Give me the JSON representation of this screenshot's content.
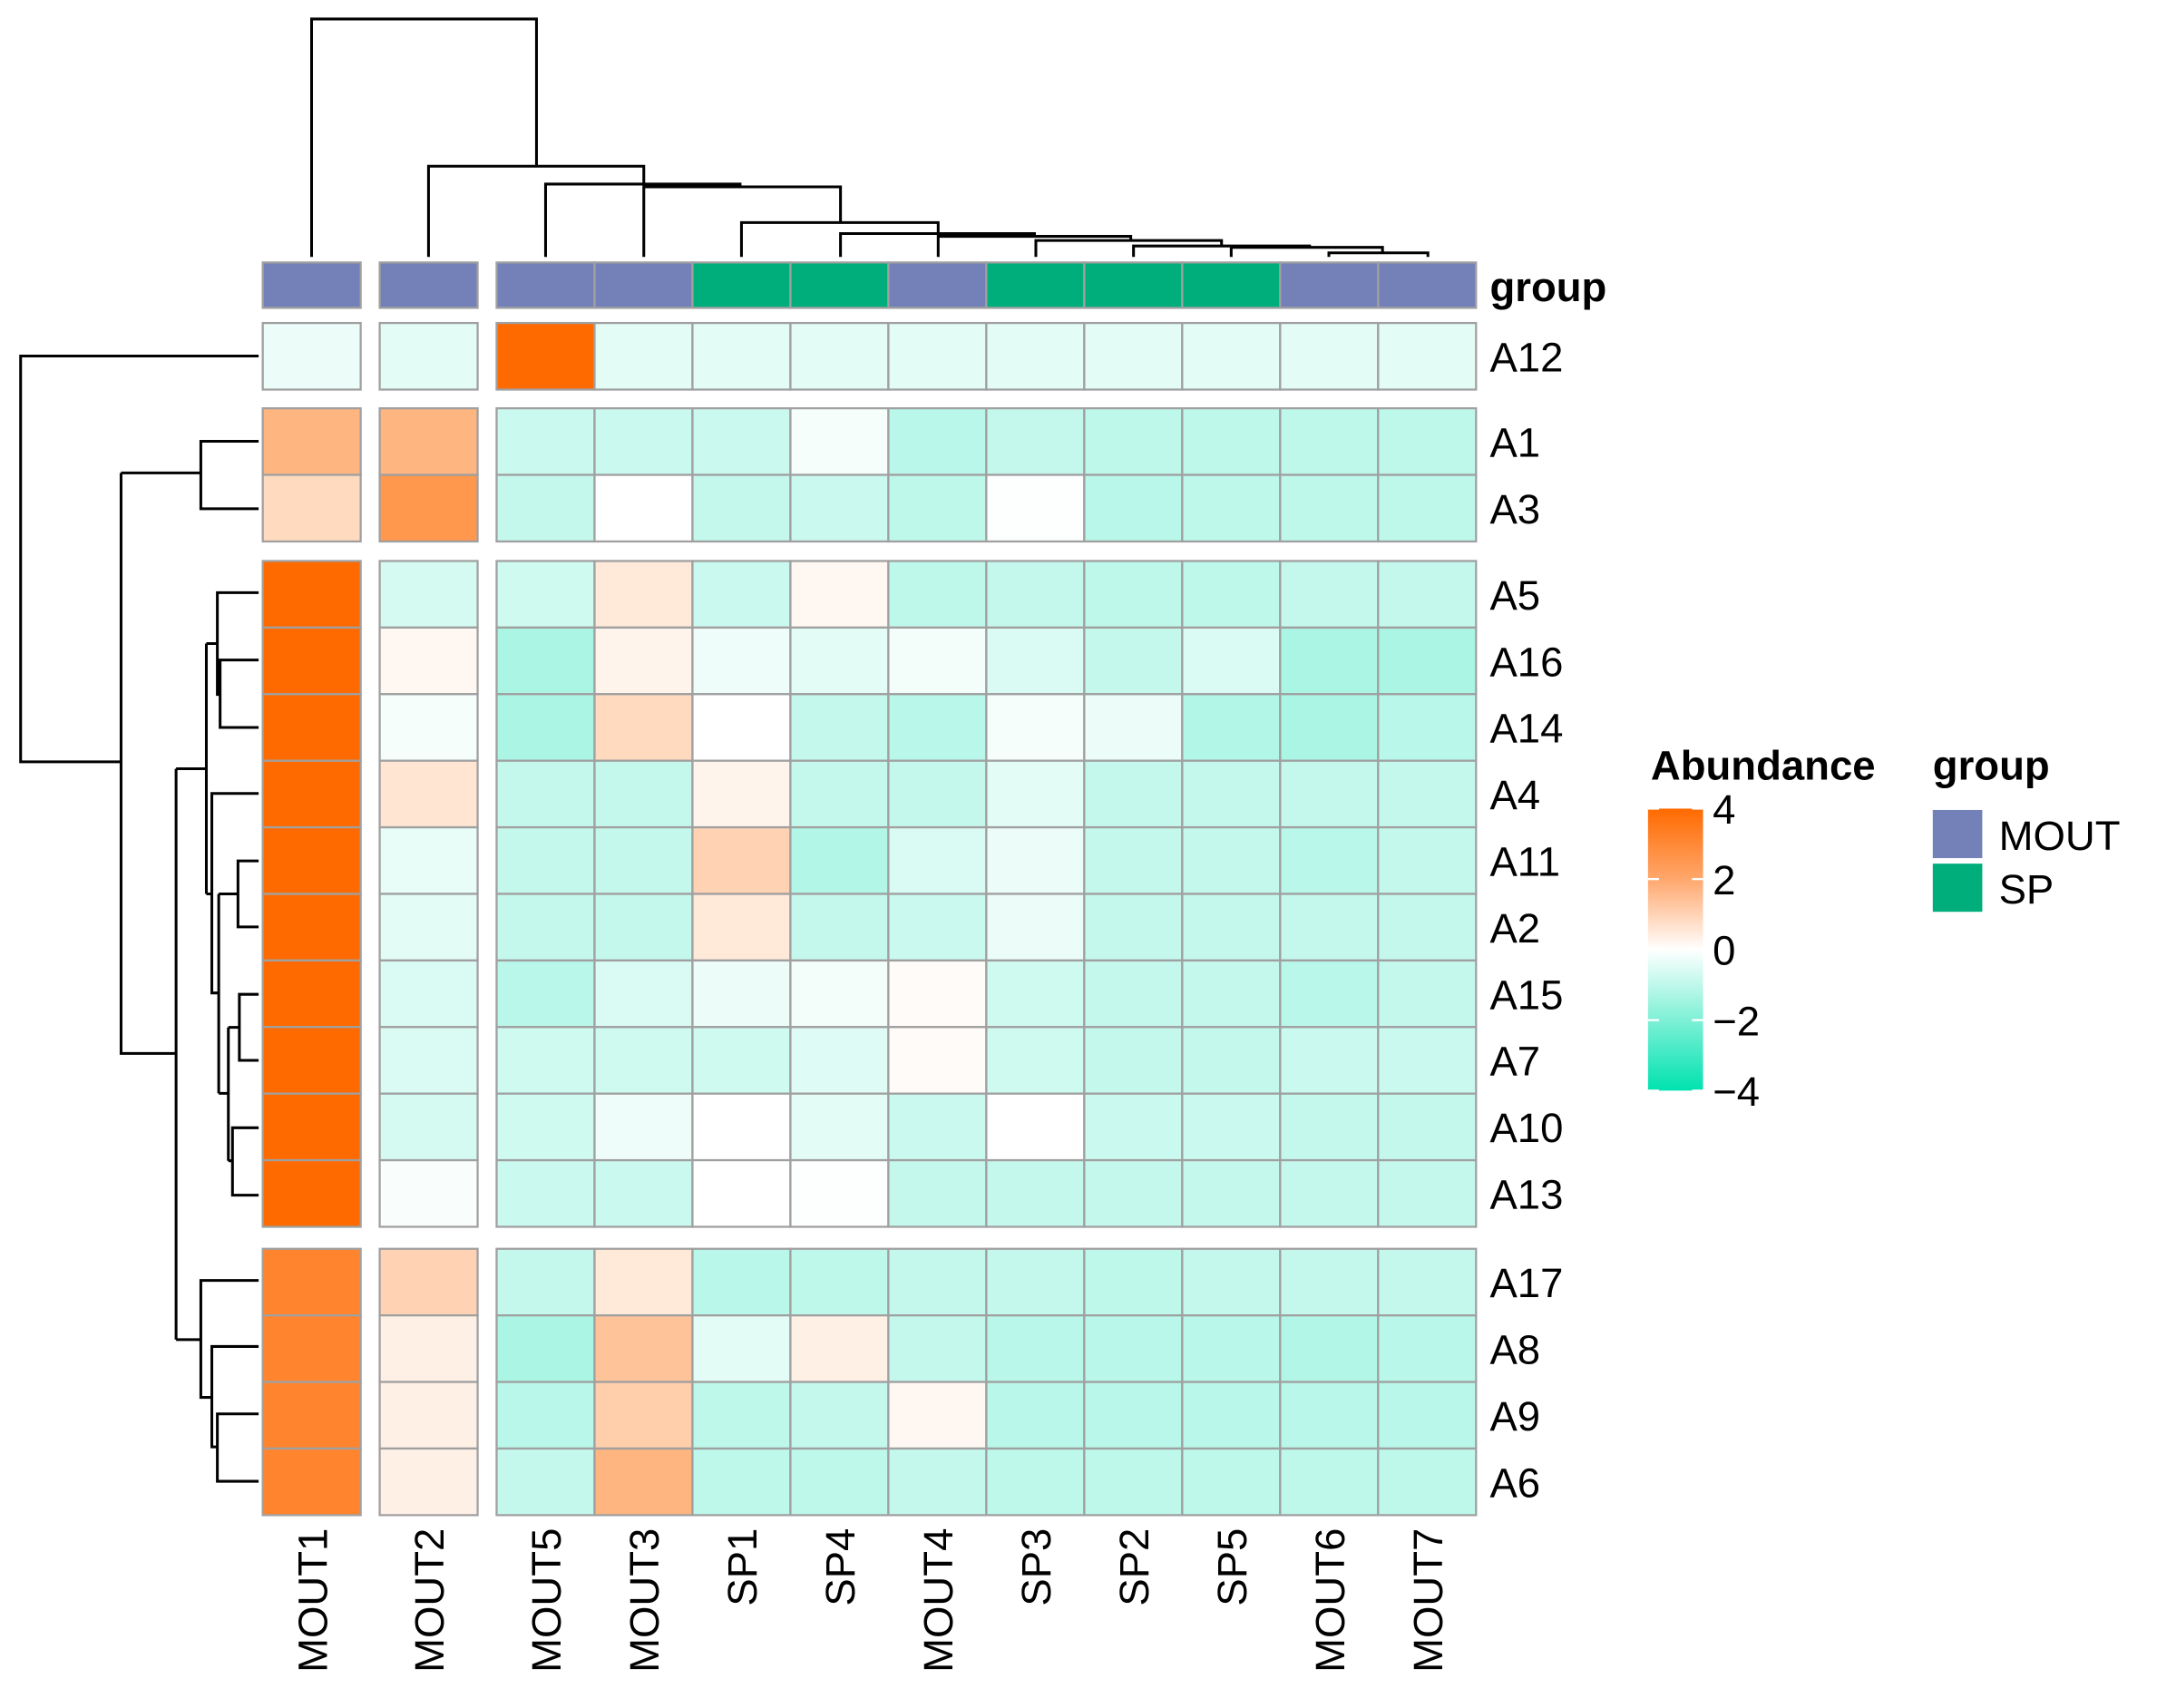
{
  "chart_data": {
    "type": "heatmap",
    "title": "",
    "columns": [
      "MOUT1",
      "MOUT2",
      "MOUT5",
      "MOUT3",
      "SP1",
      "SP4",
      "MOUT4",
      "SP3",
      "SP2",
      "SP5",
      "MOUT6",
      "MOUT7"
    ],
    "column_groups": [
      "MOUT",
      "MOUT",
      "MOUT",
      "MOUT",
      "SP",
      "SP",
      "MOUT",
      "SP",
      "SP",
      "SP",
      "MOUT",
      "MOUT"
    ],
    "column_splits": [
      [
        0
      ],
      [
        1
      ],
      [
        2,
        3,
        4,
        5,
        6,
        7,
        8,
        9,
        10,
        11
      ]
    ],
    "rows": [
      "A12",
      "A1",
      "A3",
      "A5",
      "A16",
      "A14",
      "A4",
      "A11",
      "A2",
      "A15",
      "A7",
      "A10",
      "A13",
      "A17",
      "A8",
      "A9",
      "A6"
    ],
    "row_splits": [
      [
        0
      ],
      [
        1,
        2
      ],
      [
        3,
        4,
        5,
        6,
        7,
        8,
        9,
        10,
        11,
        12
      ],
      [
        13,
        14,
        15,
        16
      ]
    ],
    "values": [
      [
        -0.8,
        -1.0,
        4.0,
        -1.0,
        -1.0,
        -1.0,
        -1.0,
        -1.0,
        -1.0,
        -1.0,
        -1.0,
        -1.0
      ],
      [
        2.0,
        2.0,
        -1.5,
        -1.5,
        -1.5,
        -0.5,
        -1.8,
        -1.6,
        -1.7,
        -1.7,
        -1.7,
        -1.7
      ],
      [
        1.0,
        2.8,
        -1.6,
        0.0,
        -1.6,
        -1.5,
        -1.7,
        -0.2,
        -1.8,
        -1.7,
        -1.7,
        -1.7
      ],
      [
        4.0,
        -1.3,
        -1.4,
        0.6,
        -1.5,
        0.2,
        -1.7,
        -1.6,
        -1.7,
        -1.7,
        -1.6,
        -1.6
      ],
      [
        4.0,
        0.2,
        -2.0,
        0.3,
        -0.7,
        -1.0,
        -0.6,
        -1.2,
        -1.6,
        -1.2,
        -2.0,
        -2.0
      ],
      [
        4.0,
        -0.5,
        -2.0,
        1.0,
        0.0,
        -1.6,
        -1.8,
        -0.5,
        -0.8,
        -1.9,
        -2.0,
        -1.8
      ],
      [
        4.0,
        0.7,
        -1.6,
        -1.6,
        0.3,
        -1.6,
        -1.6,
        -1.0,
        -1.6,
        -1.6,
        -1.6,
        -1.6
      ],
      [
        4.0,
        -0.9,
        -1.6,
        -1.6,
        1.2,
        -1.9,
        -1.2,
        -0.8,
        -1.6,
        -1.6,
        -1.8,
        -1.6
      ],
      [
        4.0,
        -1.0,
        -1.6,
        -1.6,
        0.6,
        -1.6,
        -1.5,
        -0.8,
        -1.6,
        -1.6,
        -1.6,
        -1.6
      ],
      [
        4.0,
        -1.2,
        -1.8,
        -1.2,
        -0.8,
        -0.6,
        0.1,
        -1.4,
        -1.6,
        -1.6,
        -1.8,
        -1.6
      ],
      [
        4.0,
        -1.2,
        -1.4,
        -1.4,
        -1.4,
        -1.1,
        0.1,
        -1.4,
        -1.6,
        -1.6,
        -1.5,
        -1.5
      ],
      [
        4.0,
        -1.3,
        -1.4,
        -0.7,
        0.0,
        -1.0,
        -1.5,
        0.0,
        -1.5,
        -1.5,
        -1.6,
        -1.6
      ],
      [
        4.0,
        -0.4,
        -1.5,
        -1.5,
        0.0,
        -0.2,
        -1.6,
        -1.6,
        -1.6,
        -1.6,
        -1.6,
        -1.6
      ],
      [
        3.3,
        1.2,
        -1.6,
        0.6,
        -1.8,
        -1.7,
        -1.6,
        -1.6,
        -1.7,
        -1.6,
        -1.6,
        -1.6
      ],
      [
        3.3,
        0.4,
        -2.0,
        1.6,
        -1.0,
        0.4,
        -1.6,
        -1.8,
        -1.8,
        -1.8,
        -1.9,
        -1.8
      ],
      [
        3.3,
        0.4,
        -1.8,
        1.3,
        -1.7,
        -1.6,
        0.2,
        -1.8,
        -1.8,
        -1.8,
        -1.8,
        -1.8
      ],
      [
        3.3,
        0.4,
        -1.6,
        2.0,
        -1.7,
        -1.7,
        -1.6,
        -1.7,
        -1.7,
        -1.7,
        -1.7,
        -1.7
      ]
    ],
    "annotation_label": "group",
    "color_scale": {
      "title": "Abundance",
      "min": -4,
      "max": 4,
      "ticks": [
        4,
        2,
        0,
        -2,
        -4
      ],
      "tick_labels": [
        "4",
        "2",
        "0",
        "−2",
        "−4"
      ],
      "low": "#00E2B0",
      "mid": "#FFFFFF",
      "high": "#FF6A00"
    },
    "group_legend": {
      "title": "group",
      "items": [
        {
          "label": "MOUT",
          "color": "#7481B8"
        },
        {
          "label": "SP",
          "color": "#00AE7B"
        }
      ]
    },
    "legend_position": "right",
    "dendrograms": {
      "rows": true,
      "columns": true
    }
  }
}
